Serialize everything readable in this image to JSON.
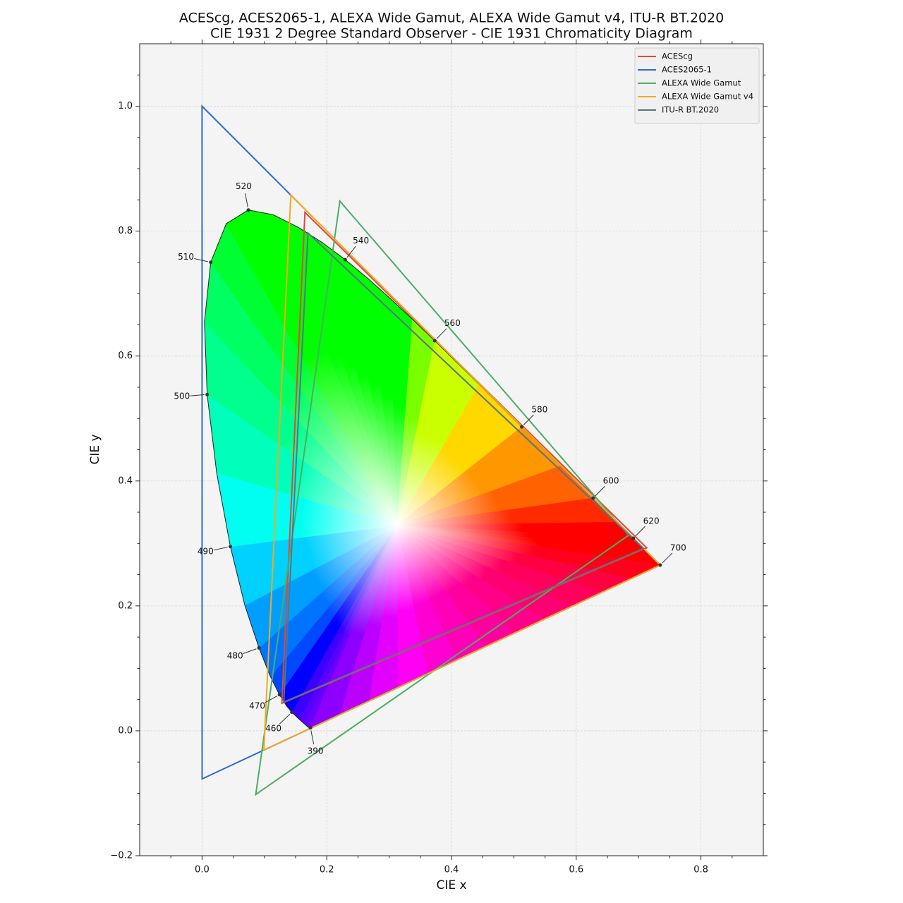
{
  "chart_data": {
    "type": "chromaticity",
    "title": "ACEScg, ACES2065-1, ALEXA Wide Gamut, ALEXA Wide Gamut v4, ITU-R BT.2020",
    "subtitle": "CIE 1931 2 Degree Standard Observer - CIE 1931 Chromaticity Diagram",
    "xlabel": "CIE x",
    "ylabel": "CIE y",
    "xlim": [
      -0.1,
      0.9
    ],
    "ylim": [
      -0.2,
      1.1
    ],
    "xticks": [
      {
        "value": 0,
        "label": "0.0"
      },
      0.2,
      0.4,
      0.6,
      0.8
    ],
    "yticks": [
      {
        "value": -0.2,
        "label": "−0.2"
      },
      {
        "value": 0,
        "label": "0.0"
      },
      0.2,
      0.4,
      0.6,
      0.8,
      {
        "value": 1,
        "label": "1.0"
      }
    ],
    "xminorticks": [
      -0.05,
      0.05,
      0.1,
      0.15,
      0.25,
      0.3,
      0.35,
      0.45,
      0.5,
      0.55,
      0.65,
      0.7,
      0.75,
      0.85
    ],
    "yminorticks": [
      -0.15,
      -0.1,
      -0.05,
      0.05,
      0.1,
      0.15,
      0.25,
      0.3,
      0.35,
      0.45,
      0.5,
      0.55,
      0.65,
      0.7,
      0.75,
      0.85,
      0.9,
      0.95,
      1.05
    ],
    "grid": true,
    "legend": "upper right",
    "locus": {
      "wavelengths": [
        390,
        400,
        410,
        420,
        430,
        440,
        450,
        460,
        465,
        470,
        475,
        480,
        485,
        490,
        495,
        500,
        505,
        510,
        515,
        520,
        525,
        530,
        535,
        540,
        545,
        550,
        555,
        560,
        570,
        580,
        590,
        600,
        610,
        620,
        630,
        640,
        650,
        660,
        680,
        700
      ],
      "x": [
        0.1738,
        0.1733,
        0.1726,
        0.1714,
        0.1689,
        0.1644,
        0.1566,
        0.144,
        0.1355,
        0.1241,
        0.1096,
        0.0913,
        0.0687,
        0.0454,
        0.0235,
        0.0082,
        0.0039,
        0.0139,
        0.0389,
        0.0743,
        0.1142,
        0.1547,
        0.1929,
        0.2296,
        0.2658,
        0.3016,
        0.3373,
        0.3731,
        0.4441,
        0.5125,
        0.5752,
        0.627,
        0.6658,
        0.6915,
        0.7079,
        0.719,
        0.726,
        0.73,
        0.7334,
        0.7347
      ],
      "y": [
        0.0049,
        0.0048,
        0.0048,
        0.0051,
        0.0069,
        0.0109,
        0.0177,
        0.0297,
        0.0399,
        0.0578,
        0.0868,
        0.1327,
        0.2007,
        0.295,
        0.4127,
        0.5384,
        0.6548,
        0.7502,
        0.812,
        0.8338,
        0.8262,
        0.8059,
        0.7816,
        0.7543,
        0.7243,
        0.6923,
        0.6589,
        0.6245,
        0.5547,
        0.4866,
        0.4242,
        0.3725,
        0.334,
        0.3083,
        0.292,
        0.2809,
        0.274,
        0.27,
        0.2666,
        0.2653
      ],
      "labeled": [
        390,
        460,
        470,
        480,
        490,
        500,
        510,
        520,
        540,
        560,
        580,
        600,
        620,
        700
      ]
    },
    "whitepoint": [
      0.3127,
      0.329
    ],
    "series": [
      {
        "name": "ACEScg",
        "color": "#e0483c",
        "x": [
          0.713,
          0.165,
          0.128
        ],
        "y": [
          0.293,
          0.83,
          0.044
        ]
      },
      {
        "name": "ACES2065-1",
        "color": "#2d6ad3",
        "x": [
          0.7347,
          0.0,
          0.0001
        ],
        "y": [
          0.2653,
          1.0,
          -0.077
        ]
      },
      {
        "name": "ALEXA Wide Gamut",
        "color": "#4cae62",
        "x": [
          0.684,
          0.221,
          0.0861
        ],
        "y": [
          0.313,
          0.848,
          -0.102
        ]
      },
      {
        "name": "ALEXA Wide Gamut v4",
        "color": "#f2a81c",
        "x": [
          0.7347,
          0.1424,
          0.0991
        ],
        "y": [
          0.2653,
          0.8576,
          -0.0308
        ]
      },
      {
        "name": "ITU-R BT.2020",
        "color": "#5a7482",
        "x": [
          0.708,
          0.17,
          0.131
        ],
        "y": [
          0.292,
          0.797,
          0.046
        ]
      }
    ]
  }
}
